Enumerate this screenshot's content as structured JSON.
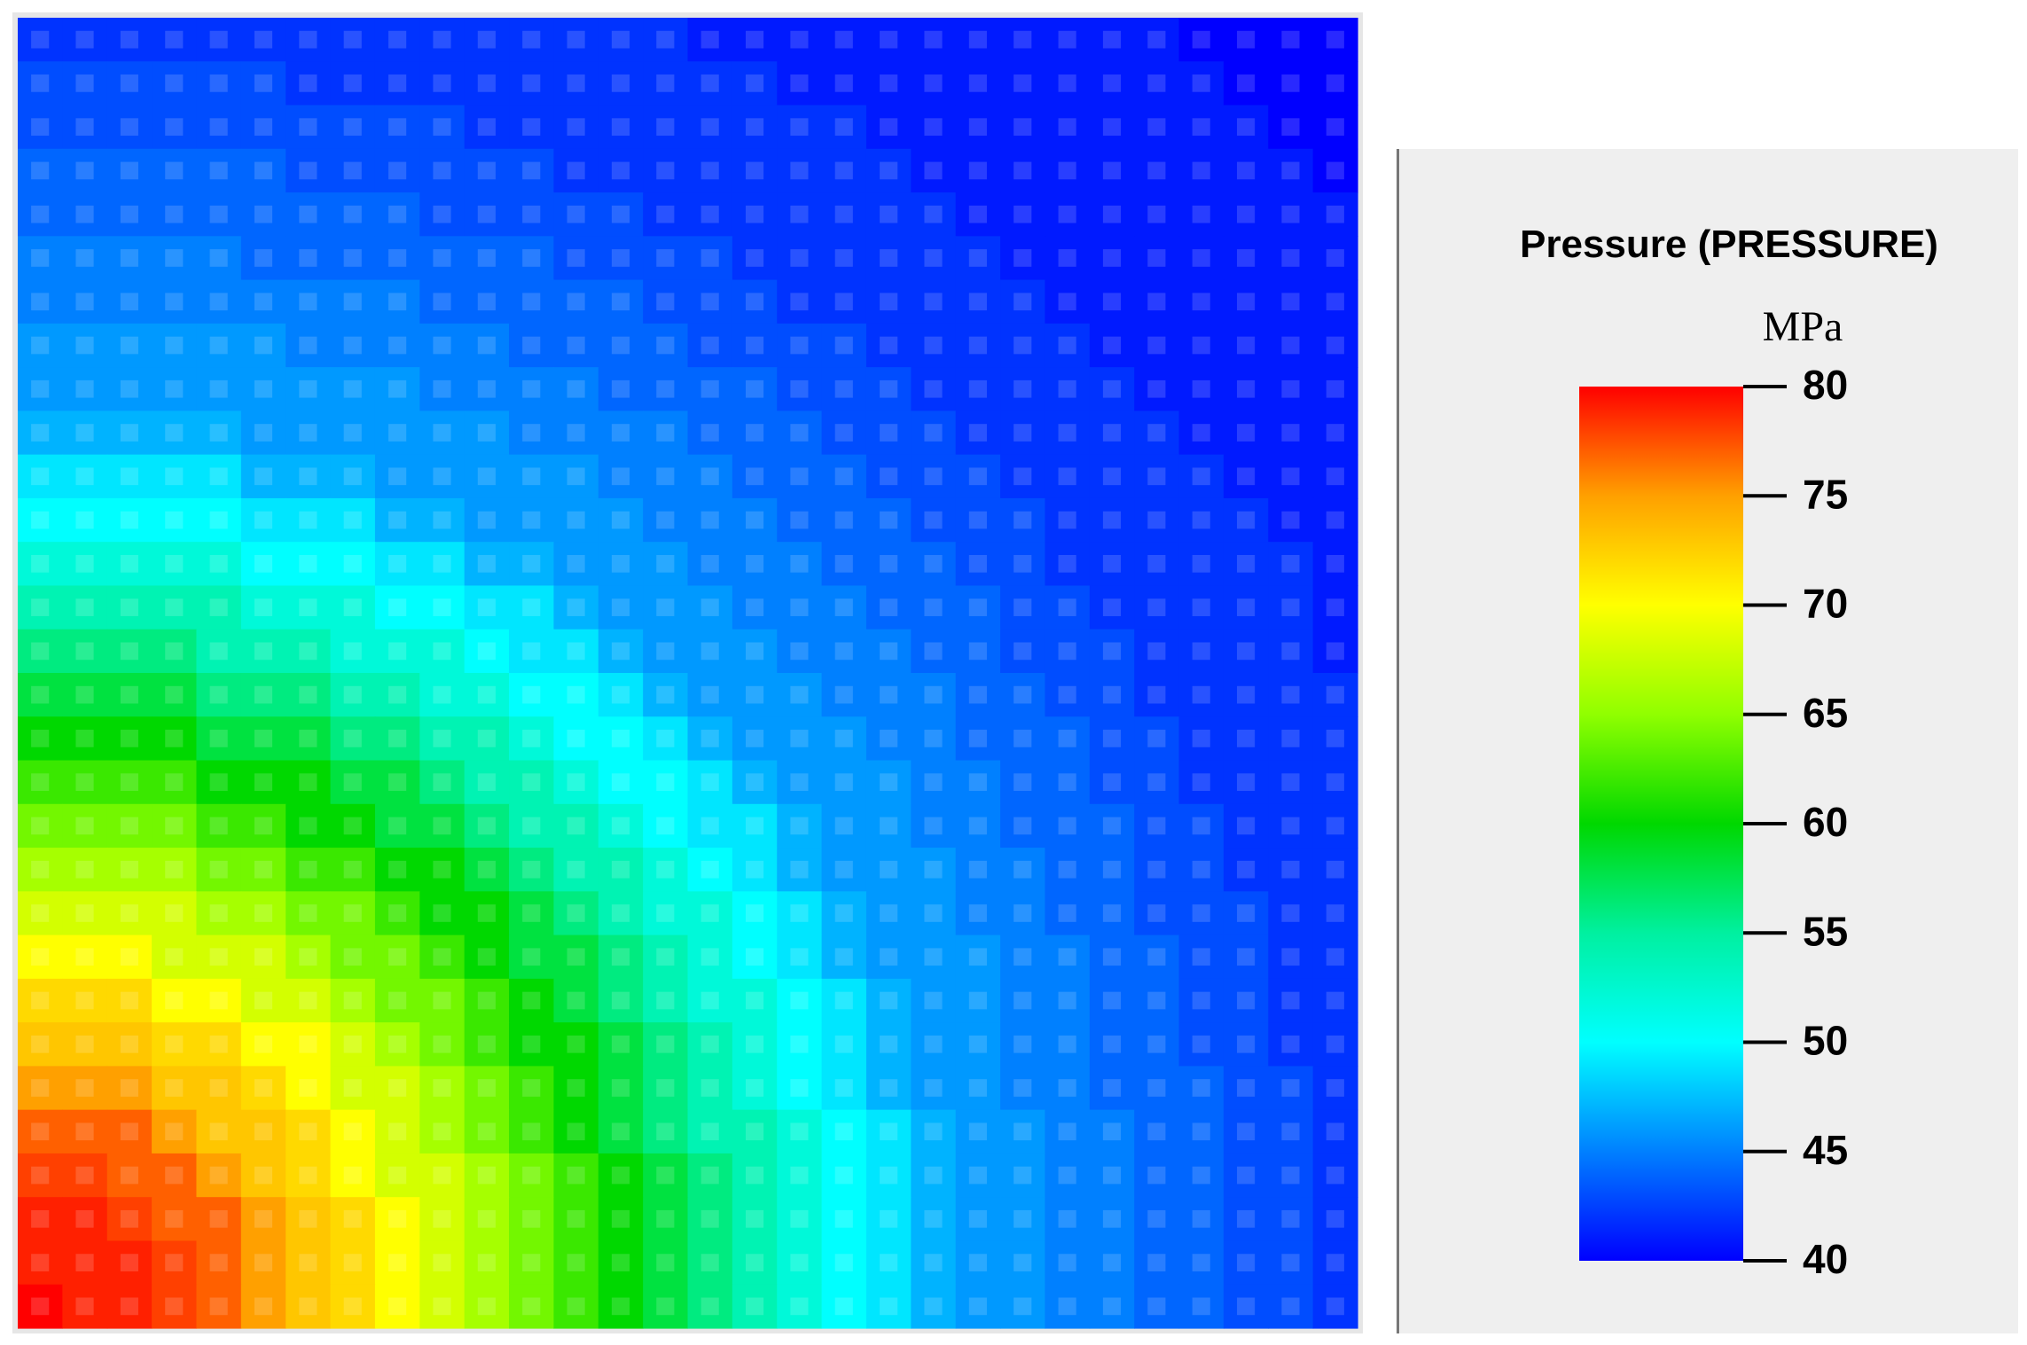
{
  "chart_data": {
    "type": "heatmap",
    "values": [
      [
        42,
        42,
        42,
        42,
        42,
        42,
        42,
        42,
        42,
        42,
        42,
        42,
        42,
        42,
        42,
        41,
        41,
        41,
        41,
        41,
        41,
        41,
        41,
        41,
        41,
        41,
        40,
        40,
        40,
        40
      ],
      [
        43,
        43,
        43,
        43,
        43,
        43,
        42,
        42,
        42,
        42,
        42,
        42,
        42,
        42,
        42,
        42,
        42,
        41,
        41,
        41,
        41,
        41,
        41,
        41,
        41,
        41,
        41,
        40,
        40,
        40
      ],
      [
        43,
        43,
        43,
        43,
        43,
        43,
        43,
        43,
        43,
        43,
        42,
        42,
        42,
        42,
        42,
        42,
        42,
        42,
        42,
        41,
        41,
        41,
        41,
        41,
        41,
        41,
        41,
        41,
        40,
        40
      ],
      [
        44,
        44,
        44,
        44,
        44,
        44,
        43,
        43,
        43,
        43,
        43,
        43,
        42,
        42,
        42,
        42,
        42,
        42,
        42,
        42,
        41,
        41,
        41,
        41,
        41,
        41,
        41,
        41,
        41,
        40
      ],
      [
        44,
        44,
        44,
        44,
        44,
        44,
        44,
        44,
        44,
        43,
        43,
        43,
        43,
        43,
        42,
        42,
        42,
        42,
        42,
        42,
        42,
        41,
        41,
        41,
        41,
        41,
        41,
        41,
        41,
        41
      ],
      [
        45,
        45,
        45,
        45,
        45,
        44,
        44,
        44,
        44,
        44,
        44,
        44,
        43,
        43,
        43,
        43,
        42,
        42,
        42,
        42,
        42,
        42,
        41,
        41,
        41,
        41,
        41,
        41,
        41,
        41
      ],
      [
        45,
        45,
        45,
        45,
        45,
        45,
        45,
        45,
        45,
        44,
        44,
        44,
        44,
        44,
        43,
        43,
        43,
        42,
        42,
        42,
        42,
        42,
        42,
        41,
        41,
        41,
        41,
        41,
        41,
        41
      ],
      [
        46,
        46,
        46,
        46,
        46,
        46,
        45,
        45,
        45,
        45,
        45,
        44,
        44,
        44,
        44,
        43,
        43,
        43,
        43,
        42,
        42,
        42,
        42,
        42,
        41,
        41,
        41,
        41,
        41,
        41
      ],
      [
        46,
        46,
        46,
        46,
        46,
        46,
        46,
        46,
        46,
        45,
        45,
        45,
        45,
        44,
        44,
        44,
        44,
        43,
        43,
        43,
        42,
        42,
        42,
        42,
        42,
        41,
        41,
        41,
        41,
        41
      ],
      [
        47,
        47,
        47,
        47,
        47,
        46,
        46,
        46,
        46,
        46,
        46,
        45,
        45,
        45,
        45,
        44,
        44,
        44,
        43,
        43,
        43,
        42,
        42,
        42,
        42,
        42,
        41,
        41,
        41,
        41
      ],
      [
        49,
        49,
        49,
        49,
        49,
        47,
        47,
        47,
        46,
        46,
        46,
        46,
        46,
        45,
        45,
        45,
        44,
        44,
        44,
        43,
        43,
        43,
        42,
        42,
        42,
        42,
        42,
        41,
        41,
        41
      ],
      [
        50,
        50,
        50,
        50,
        50,
        49,
        49,
        49,
        47,
        47,
        46,
        46,
        46,
        46,
        45,
        45,
        45,
        44,
        44,
        44,
        43,
        43,
        43,
        42,
        42,
        42,
        42,
        42,
        41,
        41
      ],
      [
        52,
        52,
        52,
        52,
        52,
        50,
        50,
        50,
        49,
        49,
        47,
        47,
        46,
        46,
        46,
        45,
        45,
        45,
        44,
        44,
        44,
        43,
        43,
        42,
        42,
        42,
        42,
        42,
        42,
        41
      ],
      [
        54,
        54,
        54,
        54,
        54,
        52,
        52,
        52,
        50,
        50,
        49,
        49,
        47,
        46,
        46,
        46,
        45,
        45,
        45,
        44,
        44,
        44,
        43,
        43,
        42,
        42,
        42,
        42,
        42,
        41
      ],
      [
        56,
        56,
        56,
        56,
        54,
        54,
        54,
        52,
        52,
        52,
        50,
        49,
        49,
        47,
        46,
        46,
        46,
        45,
        45,
        45,
        44,
        44,
        43,
        43,
        43,
        42,
        42,
        42,
        42,
        41
      ],
      [
        58,
        58,
        58,
        58,
        56,
        56,
        56,
        54,
        54,
        52,
        52,
        50,
        50,
        49,
        47,
        46,
        46,
        46,
        45,
        45,
        45,
        44,
        44,
        43,
        43,
        42,
        42,
        42,
        42,
        42
      ],
      [
        60,
        60,
        60,
        60,
        58,
        58,
        58,
        56,
        56,
        54,
        54,
        52,
        50,
        50,
        49,
        47,
        46,
        46,
        46,
        45,
        45,
        44,
        44,
        44,
        43,
        43,
        42,
        42,
        42,
        42
      ],
      [
        62,
        62,
        62,
        62,
        60,
        60,
        60,
        58,
        58,
        56,
        54,
        54,
        52,
        50,
        50,
        49,
        47,
        46,
        46,
        46,
        45,
        45,
        44,
        44,
        43,
        43,
        42,
        42,
        42,
        42
      ],
      [
        64,
        64,
        64,
        64,
        62,
        62,
        60,
        60,
        58,
        58,
        56,
        54,
        54,
        52,
        50,
        49,
        49,
        47,
        46,
        46,
        45,
        45,
        44,
        44,
        44,
        43,
        43,
        42,
        42,
        42
      ],
      [
        66,
        66,
        66,
        66,
        64,
        64,
        62,
        62,
        60,
        60,
        58,
        56,
        54,
        54,
        52,
        50,
        49,
        47,
        46,
        46,
        46,
        45,
        45,
        44,
        44,
        43,
        43,
        42,
        42,
        42
      ],
      [
        68,
        68,
        68,
        68,
        66,
        66,
        64,
        64,
        62,
        60,
        60,
        58,
        56,
        54,
        52,
        52,
        50,
        49,
        47,
        46,
        46,
        45,
        45,
        44,
        44,
        43,
        43,
        43,
        42,
        42
      ],
      [
        70,
        70,
        70,
        68,
        68,
        68,
        66,
        64,
        64,
        62,
        60,
        58,
        58,
        56,
        54,
        52,
        50,
        49,
        47,
        46,
        46,
        46,
        45,
        45,
        44,
        44,
        43,
        43,
        42,
        42
      ],
      [
        72,
        72,
        72,
        70,
        70,
        68,
        68,
        66,
        64,
        64,
        62,
        60,
        58,
        56,
        54,
        52,
        52,
        50,
        49,
        47,
        46,
        46,
        45,
        45,
        44,
        44,
        43,
        43,
        42,
        42
      ],
      [
        73,
        73,
        73,
        72,
        72,
        70,
        70,
        68,
        66,
        64,
        62,
        60,
        60,
        58,
        56,
        54,
        52,
        50,
        49,
        47,
        46,
        46,
        45,
        45,
        44,
        44,
        43,
        43,
        42,
        42
      ],
      [
        75,
        75,
        75,
        73,
        73,
        72,
        70,
        68,
        68,
        66,
        64,
        62,
        60,
        58,
        56,
        54,
        52,
        50,
        49,
        47,
        46,
        46,
        45,
        45,
        44,
        44,
        44,
        43,
        43,
        42
      ],
      [
        77,
        77,
        77,
        75,
        73,
        73,
        72,
        70,
        68,
        66,
        64,
        62,
        60,
        58,
        56,
        54,
        54,
        52,
        50,
        49,
        47,
        46,
        46,
        45,
        45,
        44,
        44,
        43,
        43,
        42
      ],
      [
        78,
        78,
        77,
        77,
        75,
        73,
        72,
        70,
        68,
        68,
        66,
        64,
        62,
        60,
        58,
        56,
        54,
        52,
        50,
        49,
        47,
        46,
        46,
        45,
        45,
        44,
        44,
        43,
        43,
        42
      ],
      [
        79,
        79,
        78,
        77,
        77,
        75,
        73,
        72,
        70,
        68,
        66,
        64,
        62,
        60,
        58,
        56,
        54,
        52,
        50,
        49,
        47,
        46,
        46,
        45,
        45,
        44,
        44,
        43,
        43,
        42
      ],
      [
        79,
        79,
        79,
        78,
        77,
        75,
        73,
        72,
        70,
        68,
        66,
        64,
        62,
        60,
        58,
        56,
        54,
        52,
        50,
        49,
        47,
        46,
        46,
        45,
        45,
        44,
        44,
        43,
        43,
        42
      ],
      [
        80,
        79,
        79,
        78,
        77,
        75,
        73,
        72,
        70,
        68,
        66,
        64,
        62,
        60,
        58,
        56,
        54,
        52,
        50,
        49,
        47,
        46,
        46,
        45,
        45,
        44,
        44,
        43,
        43,
        42
      ]
    ],
    "colorbar": {
      "title": "Pressure (PRESSURE)",
      "unit": "MPa",
      "lim": [
        40,
        80
      ],
      "ticks": [
        40,
        45,
        50,
        55,
        60,
        65,
        70,
        75,
        80
      ],
      "colors": [
        "#0000ff",
        "#0080ff",
        "#00ffff",
        "#00f0a0",
        "#00d800",
        "#90ff00",
        "#ffff00",
        "#ffa000",
        "#ff0000"
      ]
    }
  }
}
